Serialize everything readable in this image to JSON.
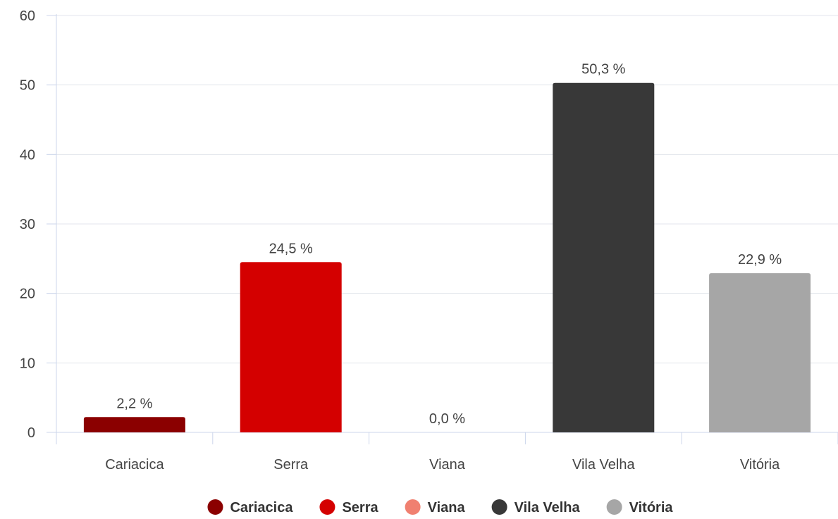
{
  "chart_data": {
    "type": "bar",
    "categories": [
      "Cariacica",
      "Serra",
      "Viana",
      "Vila Velha",
      "Vitória"
    ],
    "values": [
      2.2,
      24.5,
      0.0,
      50.3,
      22.9
    ],
    "data_labels": [
      "2,2 %",
      "24,5 %",
      "0,0 %",
      "50,3 %",
      "22,9 %"
    ],
    "colors": [
      "#8b0000",
      "#d40000",
      "#f08070",
      "#383838",
      "#a6a6a6"
    ],
    "ylim": [
      0,
      60
    ],
    "yticks": [
      0,
      10,
      20,
      30,
      40,
      50,
      60
    ],
    "ytick_labels": [
      "0",
      "10",
      "20",
      "30",
      "40",
      "50",
      "60"
    ],
    "grid": true,
    "legend": {
      "position": "bottom",
      "entries": [
        "Cariacica",
        "Serra",
        "Viana",
        "Vila Velha",
        "Vitória"
      ]
    }
  }
}
